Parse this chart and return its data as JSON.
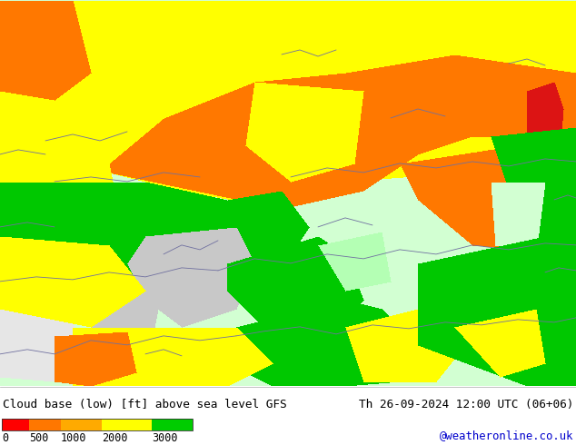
{
  "title_left": "Cloud base (low) [ft] above sea level GFS",
  "title_right": "Th 26-09-2024 12:00 UTC (06+06)",
  "credit": "@weatheronline.co.uk",
  "colors": [
    "#ff0000",
    "#ff7700",
    "#ffaa00",
    "#ffff00",
    "#ccffcc",
    "#00cc00",
    "#d0d0d0",
    "#e8ffe8"
  ],
  "bar_segments": [
    [
      0,
      30,
      "#ff0000"
    ],
    [
      30,
      65,
      "#ff7700"
    ],
    [
      65,
      110,
      "#ffaa00"
    ],
    [
      110,
      165,
      "#ffff00"
    ],
    [
      165,
      210,
      "#00cc00"
    ]
  ],
  "bar_tick_labels": [
    "0",
    "500",
    "1000",
    "2000",
    "3000"
  ],
  "bar_tick_x": [
    2,
    32,
    67,
    112,
    167
  ],
  "info_bg": "#ffffff",
  "map_bg_color": "#e8ffe8",
  "border_color": "#7070a0",
  "border_lw": 0.6
}
